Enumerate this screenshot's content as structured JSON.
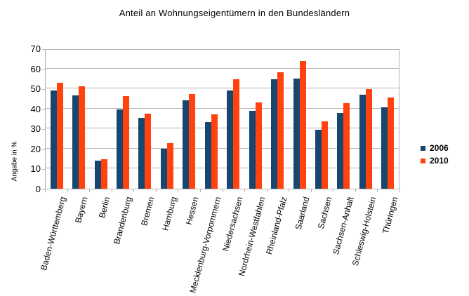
{
  "chart_data": {
    "type": "bar",
    "title": "Anteil an Wohnungseigentümern in den Bundesländern",
    "ylabel": "Angabe in %",
    "xlabel": "",
    "ylim": [
      0,
      70
    ],
    "yticks": [
      0,
      10,
      20,
      30,
      40,
      50,
      60,
      70
    ],
    "grid": true,
    "legend_position": "right",
    "grid_color": "#b3b3b3",
    "categories": [
      "Baden-Württemberg",
      "Bayern",
      "Berlin",
      "Brandenburg",
      "Bremen",
      "Hamburg",
      "Hessen",
      "Mecklenburg-Vorpommern",
      "Niedersachsen",
      "Nordrhein-Westfahlen",
      "Rheinland-Pfalz",
      "Saarland",
      "Sachsen",
      "Sachsen-Anhalt",
      "Schleswig-Holstein",
      "Thüringen"
    ],
    "series": [
      {
        "name": "2006",
        "color": "#17466f",
        "values": [
          49,
          46.5,
          14,
          39.5,
          35.5,
          20,
          44.2,
          33.2,
          49,
          38.7,
          54.5,
          55,
          29.5,
          37.8,
          47,
          40.7
        ]
      },
      {
        "name": "2010",
        "color": "#ff420e",
        "values": [
          52.8,
          51,
          14.7,
          46.2,
          37.3,
          22.6,
          47.3,
          37,
          54.5,
          43,
          58,
          63.7,
          33.7,
          42.7,
          49.6,
          45.5
        ]
      }
    ]
  }
}
